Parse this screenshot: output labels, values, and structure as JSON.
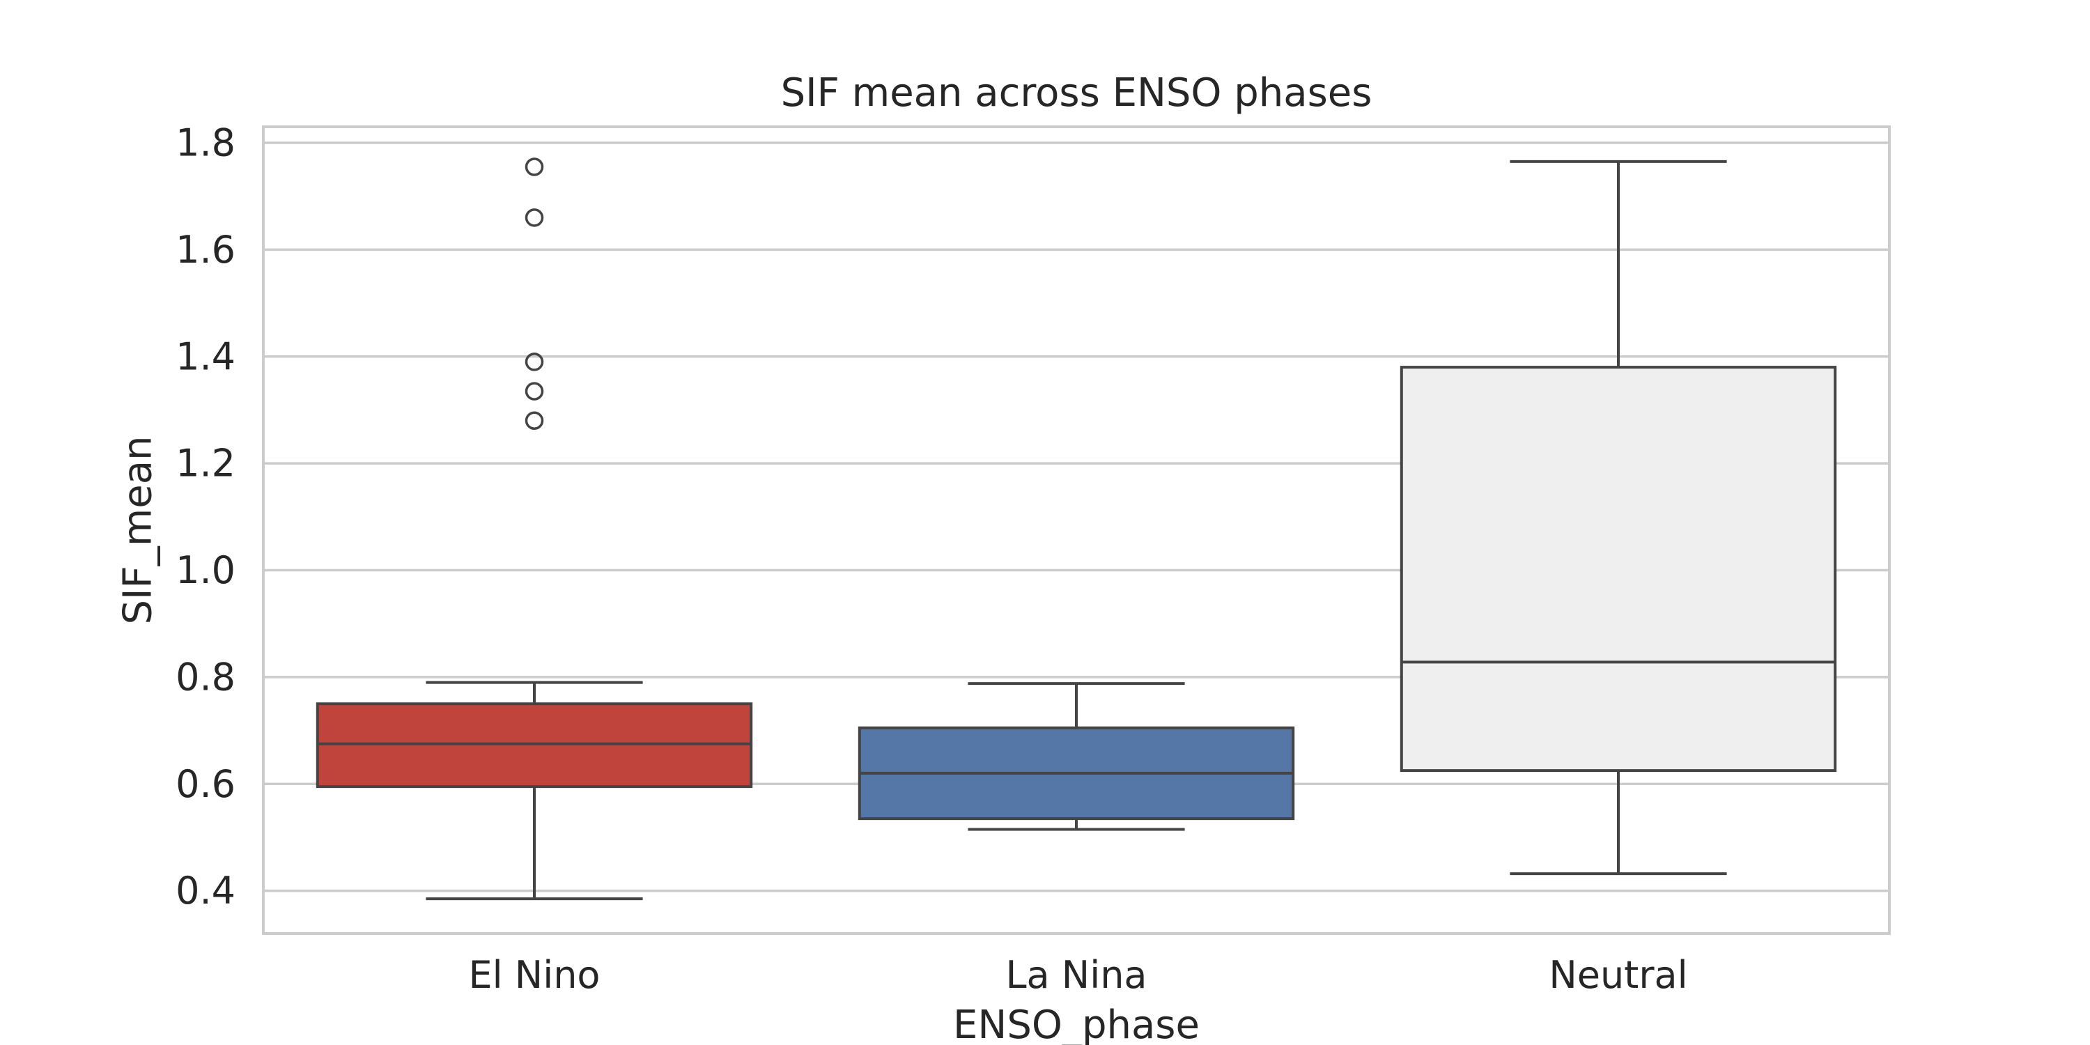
{
  "chart_data": {
    "type": "box",
    "title": "SIF mean across ENSO phases",
    "xlabel": "ENSO_phase",
    "ylabel": "SIF_mean",
    "ylim": [
      0.32,
      1.83
    ],
    "yticks": [
      0.4,
      0.6,
      0.8,
      1.0,
      1.2,
      1.4,
      1.6,
      1.8
    ],
    "grid": true,
    "legend": "none",
    "categories": [
      "El Nino",
      "La Nina",
      "Neutral"
    ],
    "boxes": [
      {
        "category": "El Nino",
        "color": "#c0443c",
        "whisker_low": 0.385,
        "q1": 0.595,
        "median": 0.675,
        "q3": 0.75,
        "whisker_high": 0.79,
        "outliers": [
          1.28,
          1.335,
          1.39,
          1.66,
          1.755
        ]
      },
      {
        "category": "La Nina",
        "color": "#5577a8",
        "whisker_low": 0.515,
        "q1": 0.535,
        "median": 0.62,
        "q3": 0.705,
        "whisker_high": 0.788,
        "outliers": []
      },
      {
        "category": "Neutral",
        "color": "#efefef",
        "whisker_low": 0.432,
        "q1": 0.625,
        "median": 0.828,
        "q3": 1.38,
        "whisker_high": 1.765,
        "outliers": []
      }
    ]
  }
}
